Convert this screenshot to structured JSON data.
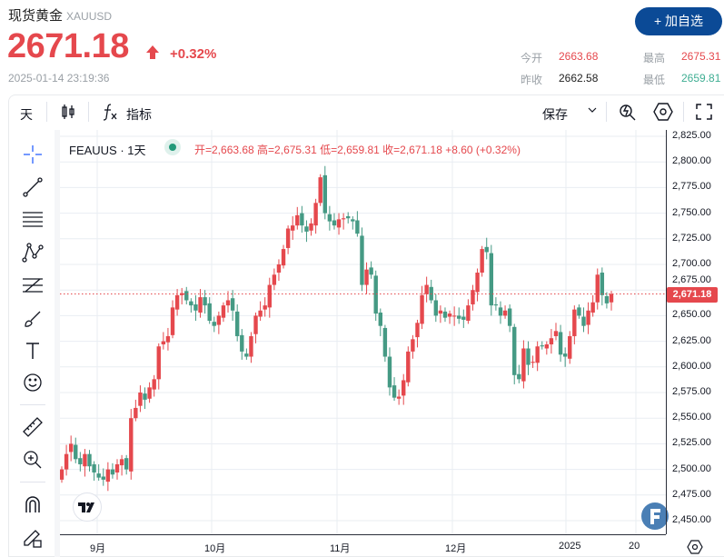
{
  "header": {
    "title": "现货黄金",
    "symbol": "XAUUSD",
    "price": "2671.18",
    "change_pct": "+0.32%",
    "timestamp": "2025-01-14 23:19:36",
    "add_watch": "+ 加自选"
  },
  "stats": {
    "open_label": "今开",
    "open": "2663.68",
    "high_label": "最高",
    "high": "2675.31",
    "prev_label": "昨收",
    "prev": "2662.58",
    "low_label": "最低",
    "low": "2659.81"
  },
  "toolbar": {
    "interval": "天",
    "indicators": "指标",
    "save": "保存"
  },
  "legend": {
    "title": "FEAUUS · 1天",
    "values": "开=2,663.68 高=2,675.31 低=2,659.81 收=2,671.18 +8.60 (+0.32%)"
  },
  "colors": {
    "up": "#e5484d",
    "down": "#459a84",
    "accent": "#0b4a96"
  },
  "chart_data": {
    "type": "candlestick",
    "ylim": [
      2437.5,
      2830
    ],
    "y_ticks": [
      "2,825.00",
      "2,800.00",
      "2,775.00",
      "2,750.00",
      "2,725.00",
      "2,700.00",
      "2,675.00",
      "2,650.00",
      "2,625.00",
      "2,600.00",
      "2,575.00",
      "2,550.00",
      "2,525.00",
      "2,500.00",
      "2,475.00",
      "2,450.00"
    ],
    "x_ticks": [
      "9月",
      "10月",
      "11月",
      "12月",
      "2025",
      "20"
    ],
    "current_price": 2671.18,
    "current_label": "2,671.18",
    "closes": [
      2500,
      2515,
      2525,
      2510,
      2505,
      2515,
      2503,
      2497,
      2492,
      2490,
      2500,
      2495,
      2505,
      2510,
      2500,
      2550,
      2560,
      2575,
      2568,
      2580,
      2588,
      2620,
      2625,
      2630,
      2658,
      2670,
      2672,
      2665,
      2660,
      2655,
      2668,
      2660,
      2645,
      2640,
      2650,
      2660,
      2665,
      2655,
      2630,
      2615,
      2610,
      2630,
      2650,
      2655,
      2660,
      2680,
      2690,
      2700,
      2715,
      2735,
      2738,
      2748,
      2738,
      2732,
      2740,
      2760,
      2785,
      2750,
      2742,
      2738,
      2744,
      2745,
      2745,
      2742,
      2730,
      2680,
      2695,
      2690,
      2652,
      2640,
      2610,
      2580,
      2570,
      2571,
      2587,
      2615,
      2627,
      2643,
      2670,
      2680,
      2665,
      2650,
      2655,
      2648,
      2652,
      2650,
      2647,
      2646,
      2660,
      2675,
      2692,
      2715,
      2712,
      2660,
      2660,
      2650,
      2655,
      2640,
      2592,
      2588,
      2618,
      2602,
      2605,
      2620,
      2620,
      2622,
      2628,
      2635,
      2612,
      2610,
      2630,
      2656,
      2650,
      2640,
      2655,
      2663,
      2690,
      2670,
      2662,
      2671.18
    ]
  }
}
